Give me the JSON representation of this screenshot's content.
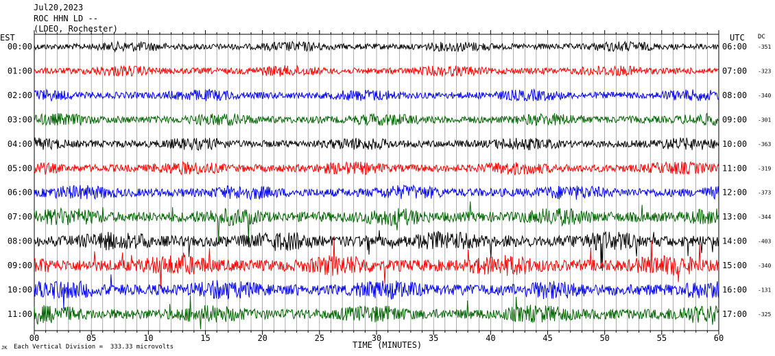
{
  "header": {
    "date": "Jul20,2023",
    "station": "ROC HHN LD --",
    "network": "(LDEO, Rochester)"
  },
  "left_axis_title": "EST",
  "right_axis_title": "UTC",
  "dc_title": "DC",
  "footer": {
    "xlabel": "TIME (MINUTES)",
    "scale": "Each Vertical Division =  333.33 microvolts",
    "corner": "JK"
  },
  "colors": {
    "black": "#000000",
    "red": "#ff0000",
    "blue": "#0000ff",
    "green": "#006400",
    "grid": "#000000"
  },
  "chart_data": {
    "type": "line",
    "x": [
      0,
      5,
      10,
      15,
      20,
      25,
      30,
      35,
      40,
      45,
      50,
      55,
      60
    ],
    "xlabel": "TIME (MINUTES)",
    "xlim": [
      0,
      60
    ],
    "rows": [
      {
        "est": "00:00",
        "utc": "06:00",
        "dc": "-351",
        "color": "black",
        "amp": 0.7
      },
      {
        "est": "01:00",
        "utc": "07:00",
        "dc": "-323",
        "color": "red",
        "amp": 0.75
      },
      {
        "est": "02:00",
        "utc": "08:00",
        "dc": "-340",
        "color": "blue",
        "amp": 0.8
      },
      {
        "est": "03:00",
        "utc": "09:00",
        "dc": "-301",
        "color": "green",
        "amp": 0.85
      },
      {
        "est": "04:00",
        "utc": "10:00",
        "dc": "-363",
        "color": "black",
        "amp": 0.85
      },
      {
        "est": "05:00",
        "utc": "11:00",
        "dc": "-319",
        "color": "red",
        "amp": 0.9
      },
      {
        "est": "06:00",
        "utc": "12:00",
        "dc": "-373",
        "color": "blue",
        "amp": 1.0
      },
      {
        "est": "07:00",
        "utc": "13:00",
        "dc": "-344",
        "color": "green",
        "amp": 1.2
      },
      {
        "est": "08:00",
        "utc": "14:00",
        "dc": "-403",
        "color": "black",
        "amp": 1.3
      },
      {
        "est": "09:00",
        "utc": "15:00",
        "dc": "-340",
        "color": "red",
        "amp": 1.4
      },
      {
        "est": "10:00",
        "utc": "16:00",
        "dc": "-131",
        "color": "blue",
        "amp": 1.3
      },
      {
        "est": "11:00",
        "utc": "17:00",
        "dc": "-325",
        "color": "green",
        "amp": 1.2
      }
    ],
    "grid": true
  }
}
